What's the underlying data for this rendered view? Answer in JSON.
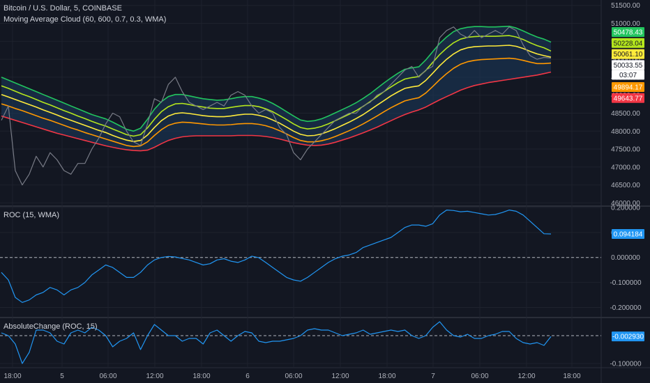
{
  "colors": {
    "background": "#131722",
    "grid": "#1e222d",
    "separator": "#2a2e39",
    "price_line": "#787b86",
    "indicator_line": "#2196f3",
    "ma_green": "#22c55e",
    "ma_lime": "#b5e61d",
    "ma_yellow": "#ffeb3b",
    "ma_orange": "#ff9800",
    "ma_red": "#f23645",
    "cloud_fill": "#1c3a5c",
    "text": "#d1d4dc",
    "tick_text": "#b2b5be"
  },
  "x_axis": {
    "ticks": [
      "18:00",
      "5",
      "06:00",
      "12:00",
      "18:00",
      "6",
      "06:00",
      "12:00",
      "18:00",
      "7",
      "06:00",
      "12:00",
      "18:00"
    ]
  },
  "time_tag": "03:07",
  "chart_data": [
    {
      "type": "line",
      "title": "Bitcoin / U.S. Dollar, 5, COINBASE",
      "subtitle": "Moving Average Cloud (60, 600, 0.7, 0.3, WMA)",
      "x": [
        0,
        10,
        20,
        30,
        40,
        50,
        60,
        70,
        80,
        90,
        100,
        110,
        120,
        130,
        140,
        150,
        160,
        170,
        180,
        190,
        200,
        210,
        220,
        230,
        240,
        250,
        260,
        270,
        280,
        290,
        300,
        310,
        320,
        330,
        340,
        350,
        360,
        370,
        380,
        390,
        400,
        410,
        420,
        430,
        440,
        450,
        460,
        470,
        480,
        490,
        500,
        510,
        520,
        530,
        540,
        550,
        560,
        570,
        580,
        590,
        600,
        610,
        620,
        630,
        640,
        650,
        660,
        670,
        680,
        690,
        700,
        710,
        720,
        730,
        740,
        750,
        760,
        770,
        780,
        790
      ],
      "series": [
        {
          "name": "Price",
          "role": "price",
          "color": "#787b86",
          "values": [
            48300,
            48700,
            46900,
            46500,
            46800,
            47300,
            47000,
            47400,
            47200,
            46900,
            46800,
            47100,
            47100,
            47500,
            47800,
            48200,
            48500,
            48400,
            48000,
            47700,
            47600,
            48200,
            48900,
            48800,
            49300,
            49500,
            49100,
            48800,
            48700,
            48600,
            48700,
            48800,
            48700,
            49000,
            49100,
            49000,
            48700,
            48500,
            48600,
            48500,
            48100,
            47900,
            47400,
            47200,
            47500,
            47700,
            47900,
            48100,
            48300,
            48400,
            48500,
            48500,
            48700,
            48800,
            49000,
            49100,
            49300,
            49500,
            49700,
            49800,
            49500,
            49700,
            49800,
            50600,
            50800,
            50900,
            50700,
            50600,
            50800,
            50600,
            50700,
            50800,
            50700,
            50900,
            50800,
            50400,
            50100,
            50000,
            50050,
            50033
          ]
        },
        {
          "name": "MA 1",
          "role": "ma",
          "color": "#22c55e",
          "values": [
            49500,
            49420,
            49340,
            49260,
            49180,
            49100,
            49020,
            48940,
            48860,
            48780,
            48700,
            48620,
            48540,
            48460,
            48400,
            48340,
            48250,
            48150,
            48050,
            48000,
            48080,
            48330,
            48610,
            48820,
            48960,
            49020,
            49020,
            48980,
            48940,
            48900,
            48880,
            48860,
            48870,
            48900,
            48940,
            48960,
            48960,
            48920,
            48860,
            48770,
            48660,
            48540,
            48420,
            48310,
            48270,
            48290,
            48340,
            48420,
            48510,
            48600,
            48690,
            48790,
            48910,
            49040,
            49190,
            49340,
            49480,
            49610,
            49720,
            49760,
            49790,
            49980,
            50210,
            50440,
            50620,
            50770,
            50850,
            50890,
            50910,
            50910,
            50900,
            50900,
            50910,
            50920,
            50870,
            50790,
            50700,
            50620,
            50560,
            50478
          ]
        },
        {
          "name": "MA 2",
          "role": "ma",
          "color": "#b5e61d",
          "values": [
            49260,
            49190,
            49110,
            49030,
            48960,
            48880,
            48800,
            48730,
            48650,
            48570,
            48500,
            48420,
            48350,
            48270,
            48200,
            48140,
            48060,
            47980,
            47900,
            47860,
            47900,
            48090,
            48330,
            48540,
            48680,
            48760,
            48770,
            48740,
            48700,
            48670,
            48640,
            48630,
            48630,
            48660,
            48690,
            48710,
            48710,
            48680,
            48620,
            48540,
            48430,
            48320,
            48200,
            48100,
            48060,
            48080,
            48130,
            48200,
            48290,
            48380,
            48470,
            48570,
            48690,
            48820,
            48960,
            49100,
            49230,
            49350,
            49450,
            49490,
            49520,
            49690,
            49910,
            50130,
            50310,
            50460,
            50560,
            50610,
            50630,
            50640,
            50640,
            50640,
            50650,
            50660,
            50620,
            50550,
            50460,
            50380,
            50320,
            50228
          ]
        },
        {
          "name": "MA 3",
          "role": "ma",
          "color": "#ffeb3b",
          "values": [
            49020,
            48950,
            48880,
            48810,
            48740,
            48670,
            48590,
            48520,
            48450,
            48370,
            48300,
            48230,
            48160,
            48090,
            48020,
            47960,
            47880,
            47810,
            47750,
            47710,
            47740,
            47890,
            48100,
            48290,
            48420,
            48490,
            48510,
            48490,
            48460,
            48430,
            48410,
            48400,
            48400,
            48420,
            48450,
            48470,
            48470,
            48440,
            48390,
            48310,
            48220,
            48110,
            48000,
            47910,
            47870,
            47880,
            47920,
            47990,
            48070,
            48160,
            48250,
            48350,
            48460,
            48590,
            48720,
            48850,
            48980,
            49090,
            49190,
            49230,
            49260,
            49410,
            49610,
            49820,
            50000,
            50150,
            50260,
            50320,
            50350,
            50360,
            50370,
            50370,
            50380,
            50390,
            50360,
            50300,
            50220,
            50150,
            50100,
            50061
          ]
        },
        {
          "name": "MA 4",
          "role": "ma",
          "color": "#ff9800",
          "values": [
            48760,
            48700,
            48630,
            48570,
            48500,
            48430,
            48360,
            48300,
            48230,
            48160,
            48090,
            48030,
            47960,
            47900,
            47840,
            47780,
            47720,
            47660,
            47600,
            47570,
            47590,
            47700,
            47880,
            48040,
            48160,
            48220,
            48250,
            48240,
            48220,
            48200,
            48180,
            48170,
            48170,
            48180,
            48200,
            48210,
            48210,
            48190,
            48150,
            48090,
            48010,
            47920,
            47820,
            47740,
            47700,
            47700,
            47730,
            47780,
            47850,
            47930,
            48010,
            48100,
            48200,
            48310,
            48420,
            48540,
            48650,
            48750,
            48840,
            48890,
            48930,
            49060,
            49240,
            49430,
            49600,
            49750,
            49860,
            49930,
            49970,
            49990,
            50000,
            50010,
            50020,
            50030,
            50010,
            49970,
            49920,
            49880,
            49880,
            49894
          ]
        },
        {
          "name": "MA 5",
          "role": "ma",
          "color": "#f23645",
          "values": [
            48420,
            48360,
            48300,
            48240,
            48180,
            48120,
            48060,
            48000,
            47940,
            47890,
            47840,
            47790,
            47740,
            47690,
            47640,
            47590,
            47550,
            47510,
            47480,
            47460,
            47450,
            47470,
            47550,
            47650,
            47740,
            47800,
            47840,
            47860,
            47870,
            47870,
            47870,
            47870,
            47870,
            47870,
            47880,
            47880,
            47880,
            47870,
            47850,
            47820,
            47780,
            47730,
            47680,
            47640,
            47610,
            47600,
            47610,
            47640,
            47690,
            47750,
            47810,
            47880,
            47950,
            48030,
            48110,
            48200,
            48290,
            48380,
            48460,
            48530,
            48590,
            48670,
            48770,
            48870,
            48960,
            49050,
            49140,
            49210,
            49270,
            49310,
            49350,
            49380,
            49410,
            49440,
            49470,
            49500,
            49530,
            49560,
            49600,
            49643
          ]
        }
      ],
      "ylim": [
        45950,
        51650
      ],
      "y_ticks": [
        46000,
        46500,
        47000,
        47500,
        48000,
        48500,
        49000,
        49500,
        50000,
        50500,
        51000,
        51500
      ],
      "tick_labels": [
        "46000.00",
        "46500.00",
        "47000.00",
        "47500.00",
        "48000.00",
        "48500.00",
        "49000.00",
        "49500.00",
        "50000.00",
        "50500.00",
        "51000.00",
        "51500.00"
      ],
      "last_value_tags": [
        {
          "label": "50478.43",
          "value": 50478.43,
          "color": "#22c55e"
        },
        {
          "label": "50228.04",
          "value": 50228.04,
          "color": "#b5e61d"
        },
        {
          "label": "50061.10",
          "value": 50061.1,
          "color": "#ffeb3b"
        },
        {
          "label": "50033.55",
          "value": 50033.55,
          "color": "#131722"
        },
        {
          "label": "49894.17",
          "value": 49894.17,
          "color": "#ff9800"
        },
        {
          "label": "49643.77",
          "value": 49643.77,
          "color": "#f23645"
        }
      ],
      "grid": true
    },
    {
      "type": "line",
      "title": "ROC (15, WMA)",
      "x": [
        0,
        10,
        20,
        30,
        40,
        50,
        60,
        70,
        80,
        90,
        100,
        110,
        120,
        130,
        140,
        150,
        160,
        170,
        180,
        190,
        200,
        210,
        220,
        230,
        240,
        250,
        260,
        270,
        280,
        290,
        300,
        310,
        320,
        330,
        340,
        350,
        360,
        370,
        380,
        390,
        400,
        410,
        420,
        430,
        440,
        450,
        460,
        470,
        480,
        490,
        500,
        510,
        520,
        530,
        540,
        550,
        560,
        570,
        580,
        590,
        600,
        610,
        620,
        630,
        640,
        650,
        660,
        670,
        680,
        690,
        700,
        710,
        720,
        730,
        740,
        750,
        760,
        770,
        780,
        790
      ],
      "series": [
        {
          "name": "ROC",
          "role": "line",
          "color": "#2196f3",
          "values": [
            -0.06,
            -0.09,
            -0.16,
            -0.18,
            -0.17,
            -0.15,
            -0.14,
            -0.12,
            -0.13,
            -0.15,
            -0.13,
            -0.12,
            -0.1,
            -0.07,
            -0.05,
            -0.03,
            -0.04,
            -0.06,
            -0.08,
            -0.08,
            -0.06,
            -0.03,
            -0.01,
            0.0,
            0.004,
            0.002,
            -0.004,
            -0.01,
            -0.02,
            -0.03,
            -0.025,
            -0.01,
            -0.005,
            -0.015,
            -0.02,
            -0.01,
            0.005,
            -0.001,
            -0.02,
            -0.04,
            -0.06,
            -0.08,
            -0.09,
            -0.095,
            -0.08,
            -0.06,
            -0.04,
            -0.02,
            -0.005,
            0.005,
            0.01,
            0.02,
            0.04,
            0.05,
            0.06,
            0.07,
            0.08,
            0.1,
            0.12,
            0.13,
            0.13,
            0.125,
            0.135,
            0.17,
            0.19,
            0.188,
            0.183,
            0.185,
            0.18,
            0.175,
            0.17,
            0.172,
            0.18,
            0.19,
            0.185,
            0.17,
            0.145,
            0.12,
            0.095,
            0.094
          ]
        }
      ],
      "zero_line": 0,
      "ylim": [
        -0.235,
        0.2
      ],
      "y_ticks": [
        -0.2,
        -0.1,
        0,
        0.1,
        0.2
      ],
      "tick_labels": [
        "-0.200000",
        "-0.100000",
        "0.000000",
        "0.100000",
        "0.200000"
      ],
      "last_value_tags": [
        {
          "label": "0.094184",
          "value": 0.094184,
          "color": "#2196f3"
        }
      ],
      "grid": true
    },
    {
      "type": "line",
      "title": "AbsoluteChange (ROC, 15)",
      "x": [
        0,
        10,
        20,
        30,
        40,
        50,
        60,
        70,
        80,
        90,
        100,
        110,
        120,
        130,
        140,
        150,
        160,
        170,
        180,
        190,
        200,
        210,
        220,
        230,
        240,
        250,
        260,
        270,
        280,
        290,
        300,
        310,
        320,
        330,
        340,
        350,
        360,
        370,
        380,
        390,
        400,
        410,
        420,
        430,
        440,
        450,
        460,
        470,
        480,
        490,
        500,
        510,
        520,
        530,
        540,
        550,
        560,
        570,
        580,
        590,
        600,
        610,
        620,
        630,
        640,
        650,
        660,
        670,
        680,
        690,
        700,
        710,
        720,
        730,
        740,
        750,
        760,
        770,
        780,
        790
      ],
      "series": [
        {
          "name": "AbsoluteChange",
          "role": "line",
          "color": "#2196f3",
          "values": [
            0.01,
            0.0,
            -0.03,
            -0.1,
            -0.06,
            0.02,
            0.02,
            0.01,
            -0.02,
            -0.03,
            0.01,
            0.02,
            0.01,
            0.03,
            0.02,
            0.0,
            -0.04,
            -0.02,
            -0.01,
            0.01,
            -0.05,
            0.0,
            0.04,
            0.02,
            0.0,
            0.0,
            -0.02,
            -0.01,
            -0.01,
            -0.03,
            0.01,
            0.02,
            0.0,
            -0.02,
            0.0,
            0.015,
            0.01,
            -0.02,
            -0.025,
            -0.02,
            -0.02,
            -0.015,
            -0.01,
            0.0,
            0.02,
            0.025,
            0.02,
            0.02,
            0.01,
            0.0,
            0.005,
            0.01,
            0.02,
            0.005,
            0.01,
            0.015,
            0.02,
            0.015,
            0.02,
            0.0,
            -0.01,
            0.0,
            0.03,
            0.05,
            0.02,
            0.0,
            -0.005,
            0.005,
            -0.01,
            -0.01,
            0.0,
            0.005,
            0.015,
            0.015,
            -0.01,
            -0.025,
            -0.03,
            -0.025,
            -0.035,
            -0.003
          ]
        }
      ],
      "zero_line": 0,
      "ylim": [
        -0.115,
        0.06
      ],
      "y_ticks": [
        -0.1
      ],
      "tick_labels": [
        "-0.100000"
      ],
      "last_value_tags": [
        {
          "label": "-0.002930",
          "value": -0.00293,
          "color": "#2196f3"
        }
      ],
      "grid": true
    }
  ]
}
